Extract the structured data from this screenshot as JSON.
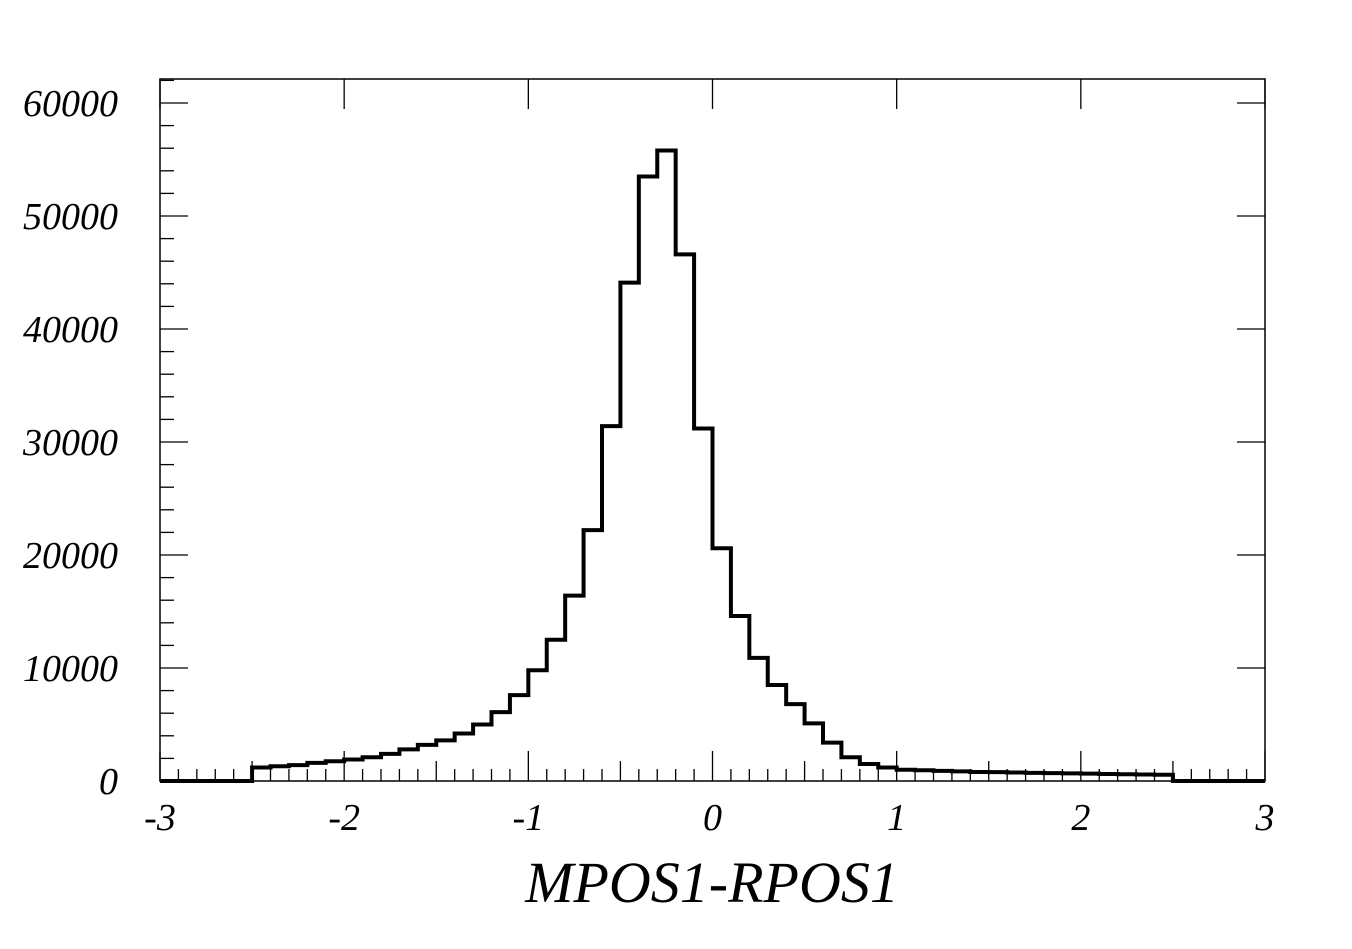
{
  "chart_data": {
    "type": "histogram",
    "title": "",
    "xlabel": "MPOS1-RPOS1",
    "ylabel": "",
    "xlim": [
      -3,
      3
    ],
    "ylim": [
      0,
      62000
    ],
    "grid": false,
    "legend": "none",
    "x_ticks": [
      -3,
      -2,
      -1,
      0,
      1,
      2,
      3
    ],
    "x_tick_labels": [
      "-3",
      "-2",
      "-1",
      "0",
      "1",
      "2",
      "3"
    ],
    "y_ticks": [
      0,
      10000,
      20000,
      30000,
      40000,
      50000,
      60000
    ],
    "y_tick_labels": [
      "0",
      "10000",
      "20000",
      "30000",
      "40000",
      "50000",
      "60000"
    ],
    "bin_edges": [
      -3.0,
      -2.9,
      -2.8,
      -2.7,
      -2.6,
      -2.5,
      -2.4,
      -2.3,
      -2.2,
      -2.1,
      -2.0,
      -1.9,
      -1.8,
      -1.7,
      -1.6,
      -1.5,
      -1.4,
      -1.3,
      -1.2,
      -1.1,
      -1.0,
      -0.9,
      -0.8,
      -0.7,
      -0.6,
      -0.5,
      -0.4,
      -0.3,
      -0.2,
      -0.1,
      0.0,
      0.1,
      0.2,
      0.3,
      0.4,
      0.5,
      0.6,
      0.7,
      0.8,
      0.9,
      1.0,
      1.1,
      1.2,
      1.3,
      1.4,
      1.5,
      1.6,
      1.7,
      1.8,
      1.9,
      2.0,
      2.1,
      2.2,
      2.3,
      2.4,
      2.5,
      2.6,
      2.7,
      2.8,
      2.9,
      3.0
    ],
    "counts": [
      0,
      0,
      0,
      0,
      0,
      1200,
      1300,
      1400,
      1600,
      1750,
      1900,
      2100,
      2400,
      2800,
      3200,
      3600,
      4200,
      5000,
      6100,
      7600,
      9800,
      12500,
      16400,
      22200,
      31400,
      44100,
      53500,
      55800,
      46600,
      31200,
      20600,
      14600,
      10900,
      8500,
      6800,
      5100,
      3400,
      2100,
      1500,
      1200,
      1000,
      950,
      900,
      850,
      800,
      780,
      750,
      720,
      700,
      680,
      650,
      620,
      600,
      580,
      550,
      0,
      0,
      0,
      0,
      0
    ],
    "line_color": "#000000",
    "background_color": "#ffffff"
  }
}
